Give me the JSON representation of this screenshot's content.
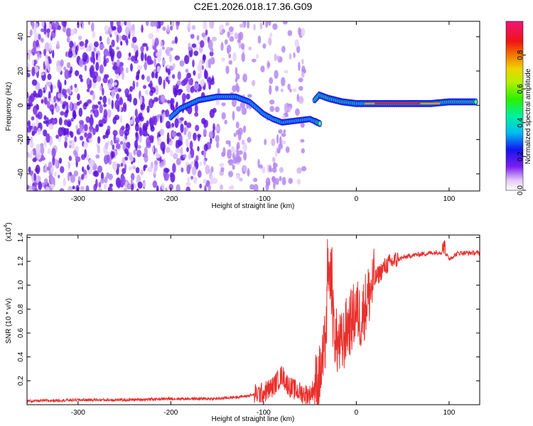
{
  "title": "C2E1.2026.018.17.36.G09",
  "colors": {
    "snr_line": "#e8302c"
  },
  "chart_data": [
    {
      "type": "heatmap",
      "name": "spectrogram",
      "xlabel": "Height of straight line (km)",
      "ylabel": "Frequency (Hz)",
      "xlim": [
        -355,
        133
      ],
      "ylim": [
        -50,
        49
      ],
      "xticks": [
        -300,
        -200,
        -100,
        0,
        100
      ],
      "yticks": [
        -40,
        -20,
        0,
        20,
        40
      ],
      "xtick_labels": [
        "-300",
        "-200",
        "-100",
        "0",
        "100"
      ],
      "ytick_labels": [
        "-40",
        "-20",
        "0",
        "20",
        "40"
      ],
      "colorbar": {
        "label": "Normalized spectral amplitude",
        "range": [
          0,
          1
        ],
        "ticks": [
          0.0,
          0.2,
          0.4,
          0.6,
          0.8
        ],
        "tick_labels": [
          "0.0",
          "0.2",
          "0.4",
          "0.6",
          "0.8"
        ]
      },
      "signal_track": [
        [
          -200,
          -7
        ],
        [
          -190,
          -2
        ],
        [
          -170,
          3
        ],
        [
          -150,
          5
        ],
        [
          -130,
          5
        ],
        [
          -115,
          2
        ],
        [
          -100,
          -5
        ],
        [
          -90,
          -8
        ],
        [
          -80,
          -10
        ],
        [
          -65,
          -9
        ],
        [
          -50,
          -8
        ],
        [
          -42,
          -10
        ],
        [
          -38,
          -11
        ],
        [
          -45,
          3
        ],
        [
          -40,
          6
        ],
        [
          -30,
          4
        ],
        [
          -15,
          2
        ],
        [
          0,
          1
        ],
        [
          20,
          1
        ],
        [
          50,
          1
        ],
        [
          80,
          1
        ],
        [
          100,
          2
        ],
        [
          130,
          2
        ]
      ]
    },
    {
      "type": "line",
      "name": "snr",
      "xlabel": "Height of straight line (km)",
      "ylabel": "SNR (10 * v/v)",
      "y_scale_label": "(x10",
      "y_scale_exp": "4",
      "y_scale_close": ")",
      "xlim": [
        -355,
        133
      ],
      "ylim": [
        0,
        1.42
      ],
      "xticks": [
        -300,
        -200,
        -100,
        0,
        100
      ],
      "yticks": [
        0.2,
        0.4,
        0.6,
        0.8,
        1.0,
        1.2,
        1.4
      ],
      "xtick_labels": [
        "-300",
        "-200",
        "-100",
        "0",
        "100"
      ],
      "ytick_labels": [
        "0.2",
        "0.4",
        "0.6",
        "0.8",
        "1.0",
        "1.2",
        "1.4"
      ],
      "x": [
        -355,
        -300,
        -250,
        -200,
        -150,
        -120,
        -100,
        -90,
        -80,
        -75,
        -70,
        -60,
        -50,
        -45,
        -40,
        -35,
        -30,
        -28,
        -25,
        -22,
        -20,
        -15,
        -10,
        -5,
        0,
        5,
        10,
        15,
        20,
        25,
        30,
        35,
        40,
        50,
        60,
        80,
        95,
        100,
        110,
        120,
        133
      ],
      "y": [
        0.03,
        0.04,
        0.04,
        0.05,
        0.05,
        0.07,
        0.1,
        0.15,
        0.25,
        0.18,
        0.14,
        0.1,
        0.08,
        0.15,
        0.22,
        0.4,
        0.9,
        1.2,
        0.7,
        0.55,
        0.5,
        0.5,
        0.65,
        0.7,
        0.8,
        0.72,
        0.85,
        0.95,
        1.05,
        1.1,
        1.15,
        1.18,
        1.2,
        1.23,
        1.25,
        1.27,
        1.28,
        1.22,
        1.27,
        1.27,
        1.27
      ]
    }
  ]
}
